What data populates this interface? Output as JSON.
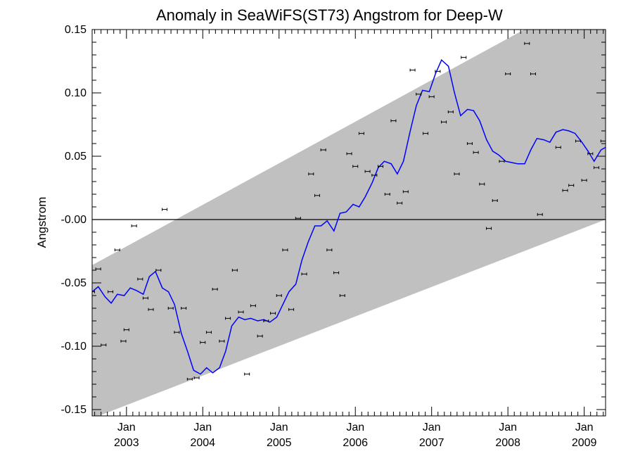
{
  "chart_data": {
    "type": "line",
    "title": "Anomaly in SeaWiFS(ST73) Angstrom for Deep-W",
    "xlabel": "",
    "ylabel": "Angstrom",
    "xlim": [
      2002.55,
      2009.28
    ],
    "ylim": [
      -0.155,
      0.15
    ],
    "yticks": [
      0.15,
      0.1,
      0.05,
      0.0,
      -0.05,
      -0.1,
      -0.15
    ],
    "ytick_labels": [
      "0.15",
      "0.10",
      "0.05",
      "-0.00",
      "-0.05",
      "-0.10",
      "-0.15"
    ],
    "xticks": [
      2003.0,
      2004.0,
      2005.0,
      2006.0,
      2007.0,
      2008.0,
      2009.0
    ],
    "xtick_month": [
      "Jan",
      "Jan",
      "Jan",
      "Jan",
      "Jan",
      "Jan",
      "Jan"
    ],
    "xtick_year": [
      "2003",
      "2004",
      "2005",
      "2006",
      "2007",
      "2008",
      "2009"
    ],
    "zero_line": 0.0,
    "band": {
      "color": "#c0c0c0",
      "upper": [
        [
          2002.55,
          -0.036
        ],
        [
          2009.28,
          0.185
        ]
      ],
      "lower": [
        [
          2002.55,
          -0.157
        ],
        [
          2009.28,
          0.0
        ]
      ]
    },
    "series": [
      {
        "kind": "line",
        "color": "#0000ff",
        "x": [
          2002.55,
          2002.63,
          2002.72,
          2002.8,
          2002.88,
          2002.97,
          2003.05,
          2003.13,
          2003.22,
          2003.3,
          2003.38,
          2003.47,
          2003.55,
          2003.63,
          2003.72,
          2003.8,
          2003.88,
          2003.97,
          2004.05,
          2004.13,
          2004.22,
          2004.3,
          2004.38,
          2004.47,
          2004.55,
          2004.63,
          2004.72,
          2004.8,
          2004.88,
          2004.97,
          2005.05,
          2005.13,
          2005.22,
          2005.3,
          2005.38,
          2005.47,
          2005.55,
          2005.63,
          2005.72,
          2005.8,
          2005.88,
          2005.97,
          2006.05,
          2006.13,
          2006.22,
          2006.3,
          2006.38,
          2006.47,
          2006.55,
          2006.63,
          2006.72,
          2006.8,
          2006.88,
          2006.97,
          2007.05,
          2007.13,
          2007.22,
          2007.3,
          2007.38,
          2007.47,
          2007.55,
          2007.63,
          2007.72,
          2007.8,
          2007.88,
          2007.97,
          2008.05,
          2008.13,
          2008.22,
          2008.3,
          2008.38,
          2008.47,
          2008.55,
          2008.63,
          2008.72,
          2008.8,
          2008.88,
          2008.97,
          2009.05,
          2009.13,
          2009.22,
          2009.28
        ],
        "y": [
          -0.057,
          -0.053,
          -0.061,
          -0.066,
          -0.059,
          -0.06,
          -0.054,
          -0.056,
          -0.059,
          -0.045,
          -0.041,
          -0.054,
          -0.057,
          -0.067,
          -0.09,
          -0.104,
          -0.119,
          -0.122,
          -0.117,
          -0.121,
          -0.117,
          -0.104,
          -0.084,
          -0.077,
          -0.079,
          -0.078,
          -0.08,
          -0.079,
          -0.081,
          -0.077,
          -0.067,
          -0.057,
          -0.051,
          -0.032,
          -0.018,
          -0.005,
          -0.005,
          -0.001,
          -0.009,
          0.005,
          0.006,
          0.012,
          0.01,
          0.018,
          0.029,
          0.041,
          0.046,
          0.044,
          0.036,
          0.046,
          0.07,
          0.09,
          0.102,
          0.101,
          0.115,
          0.126,
          0.121,
          0.1,
          0.082,
          0.087,
          0.086,
          0.078,
          0.063,
          0.054,
          0.051,
          0.046,
          0.045,
          0.044,
          0.044,
          0.055,
          0.064,
          0.063,
          0.061,
          0.069,
          0.071,
          0.07,
          0.068,
          0.061,
          0.054,
          0.046,
          0.055,
          0.057
        ]
      },
      {
        "kind": "points",
        "color": "#000000",
        "x": [
          2002.55,
          2002.63,
          2002.7,
          2002.79,
          2002.88,
          2002.96,
          2003.0,
          2003.1,
          2003.18,
          2003.25,
          2003.32,
          2003.42,
          2003.5,
          2003.58,
          2003.66,
          2003.75,
          2003.83,
          2003.92,
          2004.0,
          2004.08,
          2004.16,
          2004.25,
          2004.33,
          2004.42,
          2004.5,
          2004.58,
          2004.66,
          2004.75,
          2004.83,
          2004.92,
          2005.0,
          2005.08,
          2005.16,
          2005.25,
          2005.33,
          2005.42,
          2005.5,
          2005.58,
          2005.66,
          2005.75,
          2005.83,
          2005.92,
          2006.0,
          2006.08,
          2006.16,
          2006.25,
          2006.33,
          2006.42,
          2006.5,
          2006.58,
          2006.66,
          2006.75,
          2006.83,
          2006.92,
          2007.0,
          2007.08,
          2007.16,
          2007.25,
          2007.33,
          2007.42,
          2007.5,
          2007.58,
          2007.66,
          2007.75,
          2007.83,
          2007.92,
          2008.0,
          2008.25,
          2008.33,
          2008.42,
          2008.66,
          2008.75,
          2008.83,
          2008.92,
          2009.0,
          2009.08,
          2009.16,
          2009.25
        ],
        "y": [
          -0.057,
          -0.039,
          -0.099,
          -0.057,
          -0.024,
          -0.096,
          -0.087,
          -0.005,
          -0.047,
          -0.062,
          -0.071,
          -0.04,
          0.008,
          -0.07,
          -0.089,
          -0.07,
          -0.126,
          -0.125,
          -0.097,
          -0.089,
          -0.055,
          -0.096,
          -0.078,
          -0.04,
          -0.073,
          -0.122,
          -0.068,
          -0.092,
          -0.08,
          -0.074,
          -0.06,
          -0.024,
          -0.071,
          0.001,
          -0.043,
          0.036,
          0.019,
          0.055,
          -0.024,
          -0.042,
          -0.06,
          0.052,
          0.042,
          0.068,
          0.038,
          0.035,
          0.042,
          0.02,
          0.078,
          0.013,
          0.022,
          0.118,
          0.099,
          0.068,
          0.097,
          0.117,
          0.077,
          0.085,
          0.036,
          0.128,
          0.06,
          0.053,
          0.028,
          -0.007,
          0.015,
          0.046,
          0.115,
          0.139,
          0.115,
          0.004,
          0.057,
          0.023,
          0.027,
          0.062,
          0.031,
          0.052,
          0.041,
          0.062
        ]
      }
    ]
  }
}
